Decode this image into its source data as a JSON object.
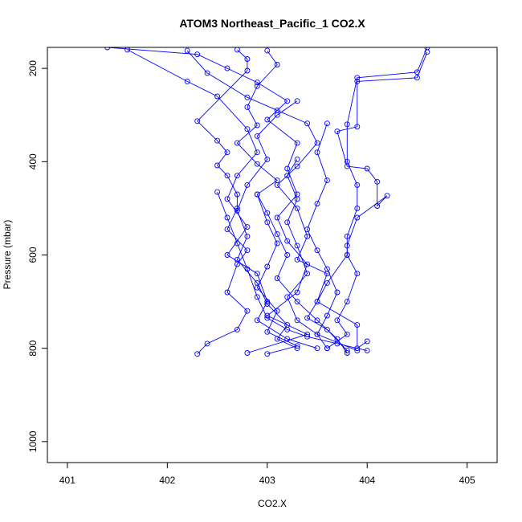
{
  "chart_data": {
    "type": "scatter",
    "title": "ATOM3 Northeast_Pacific_1 CO2.X",
    "xlabel": "CO2.X",
    "ylabel": "Pressure (mbar)",
    "xlim": [
      400.8,
      405.3
    ],
    "ylim": [
      1045,
      155
    ],
    "y_reversed": true,
    "x_ticks": [
      401,
      402,
      403,
      404,
      405
    ],
    "y_ticks": [
      200,
      400,
      600,
      800,
      1000
    ],
    "grid": false,
    "legend": "none",
    "colors": {
      "series": "#0000ff",
      "axis": "#000000"
    },
    "marker": "open-circle",
    "connected": true,
    "profiles": [
      {
        "points": [
          [
            401.4,
            155
          ],
          [
            402.3,
            170
          ],
          [
            402.6,
            200
          ],
          [
            402.9,
            230
          ],
          [
            403.2,
            270
          ],
          [
            403.0,
            310
          ],
          [
            403.3,
            360
          ],
          [
            403.2,
            415
          ],
          [
            403.3,
            470
          ],
          [
            403.1,
            520
          ],
          [
            403.2,
            570
          ],
          [
            403.4,
            620
          ],
          [
            403.3,
            680
          ],
          [
            403.0,
            730
          ],
          [
            403.4,
            770
          ],
          [
            402.8,
            810
          ]
        ]
      },
      {
        "points": [
          [
            401.6,
            160
          ],
          [
            402.2,
            228
          ],
          [
            402.5,
            260
          ],
          [
            402.8,
            330
          ],
          [
            402.9,
            380
          ],
          [
            402.7,
            430
          ],
          [
            402.6,
            480
          ],
          [
            402.8,
            540
          ],
          [
            402.6,
            600
          ],
          [
            402.9,
            640
          ],
          [
            403.0,
            700
          ],
          [
            402.9,
            740
          ],
          [
            403.2,
            780
          ],
          [
            403.5,
            800
          ]
        ]
      },
      {
        "points": [
          [
            404.6,
            155
          ],
          [
            404.5,
            208
          ],
          [
            403.9,
            220
          ],
          [
            403.8,
            320
          ],
          [
            403.8,
            400
          ],
          [
            403.9,
            450
          ],
          [
            403.9,
            500
          ],
          [
            403.8,
            560
          ],
          [
            403.8,
            600
          ],
          [
            403.9,
            640
          ],
          [
            403.8,
            700
          ],
          [
            403.7,
            740
          ],
          [
            403.8,
            770
          ],
          [
            403.6,
            800
          ]
        ]
      },
      {
        "points": [
          [
            404.6,
            165
          ],
          [
            404.5,
            220
          ],
          [
            403.9,
            228
          ],
          [
            403.9,
            325
          ],
          [
            403.7,
            335
          ],
          [
            403.8,
            410
          ],
          [
            404.0,
            415
          ],
          [
            404.1,
            443
          ],
          [
            404.1,
            495
          ],
          [
            404.2,
            473
          ],
          [
            403.9,
            520
          ],
          [
            403.8,
            580
          ],
          [
            403.8,
            600
          ],
          [
            403.6,
            660
          ],
          [
            403.5,
            700
          ],
          [
            403.9,
            750
          ],
          [
            403.9,
            800
          ],
          [
            404.0,
            785
          ]
        ]
      },
      {
        "points": [
          [
            402.7,
            160
          ],
          [
            402.8,
            180
          ],
          [
            402.8,
            205
          ],
          [
            402.3,
            313
          ],
          [
            402.5,
            355
          ],
          [
            402.6,
            380
          ],
          [
            402.5,
            408
          ],
          [
            402.6,
            430
          ],
          [
            402.7,
            470
          ],
          [
            402.7,
            500
          ],
          [
            402.6,
            545
          ],
          [
            402.8,
            590
          ],
          [
            402.7,
            620
          ],
          [
            402.6,
            680
          ],
          [
            402.8,
            720
          ],
          [
            402.7,
            760
          ],
          [
            402.4,
            790
          ],
          [
            402.3,
            812
          ]
        ]
      },
      {
        "points": [
          [
            402.2,
            162
          ],
          [
            402.4,
            210
          ],
          [
            402.8,
            262
          ],
          [
            403.1,
            290
          ],
          [
            403.4,
            318
          ],
          [
            403.5,
            360
          ],
          [
            403.3,
            410
          ],
          [
            403.1,
            450
          ],
          [
            403.3,
            500
          ],
          [
            403.4,
            560
          ],
          [
            403.3,
            610
          ],
          [
            403.6,
            640
          ],
          [
            403.5,
            700
          ],
          [
            403.4,
            735
          ],
          [
            403.6,
            760
          ],
          [
            403.8,
            805
          ]
        ]
      },
      {
        "points": [
          [
            403.0,
            162
          ],
          [
            403.1,
            192
          ],
          [
            402.9,
            238
          ],
          [
            402.8,
            283
          ],
          [
            402.9,
            322
          ],
          [
            402.7,
            360
          ],
          [
            402.9,
            405
          ],
          [
            403.1,
            440
          ],
          [
            402.9,
            470
          ],
          [
            403.0,
            530
          ],
          [
            403.1,
            575
          ],
          [
            403.0,
            625
          ],
          [
            402.9,
            670
          ],
          [
            403.1,
            720
          ],
          [
            403.0,
            765
          ],
          [
            403.3,
            795
          ],
          [
            403.0,
            812
          ]
        ]
      },
      {
        "points": [
          [
            403.3,
            270
          ],
          [
            403.1,
            300
          ],
          [
            402.9,
            345
          ],
          [
            403.0,
            395
          ],
          [
            402.8,
            450
          ],
          [
            402.7,
            505
          ],
          [
            402.8,
            560
          ],
          [
            402.7,
            610
          ],
          [
            402.9,
            660
          ],
          [
            403.0,
            705
          ],
          [
            403.2,
            750
          ],
          [
            403.1,
            780
          ],
          [
            403.3,
            800
          ]
        ]
      },
      {
        "points": [
          [
            403.6,
            318
          ],
          [
            403.5,
            380
          ],
          [
            403.6,
            440
          ],
          [
            403.5,
            490
          ],
          [
            403.4,
            545
          ],
          [
            403.5,
            590
          ],
          [
            403.6,
            630
          ],
          [
            403.7,
            680
          ],
          [
            403.6,
            730
          ],
          [
            403.5,
            770
          ],
          [
            403.9,
            805
          ]
        ]
      },
      {
        "points": [
          [
            402.5,
            465
          ],
          [
            402.6,
            520
          ],
          [
            402.7,
            575
          ],
          [
            402.8,
            630
          ],
          [
            402.9,
            690
          ],
          [
            403.0,
            735
          ],
          [
            403.2,
            760
          ],
          [
            403.4,
            775
          ],
          [
            403.7,
            790
          ],
          [
            404.0,
            805
          ]
        ]
      },
      {
        "points": [
          [
            403.3,
            395
          ],
          [
            403.2,
            430
          ],
          [
            403.3,
            480
          ],
          [
            403.2,
            530
          ],
          [
            403.3,
            580
          ],
          [
            403.4,
            640
          ],
          [
            403.2,
            690
          ],
          [
            403.3,
            740
          ],
          [
            403.5,
            770
          ],
          [
            403.6,
            800
          ]
        ]
      },
      {
        "points": [
          [
            402.9,
            470
          ],
          [
            403.0,
            510
          ],
          [
            403.1,
            555
          ],
          [
            403.2,
            600
          ],
          [
            403.1,
            650
          ],
          [
            403.3,
            700
          ],
          [
            403.5,
            740
          ],
          [
            403.7,
            780
          ],
          [
            403.8,
            810
          ]
        ]
      }
    ]
  }
}
